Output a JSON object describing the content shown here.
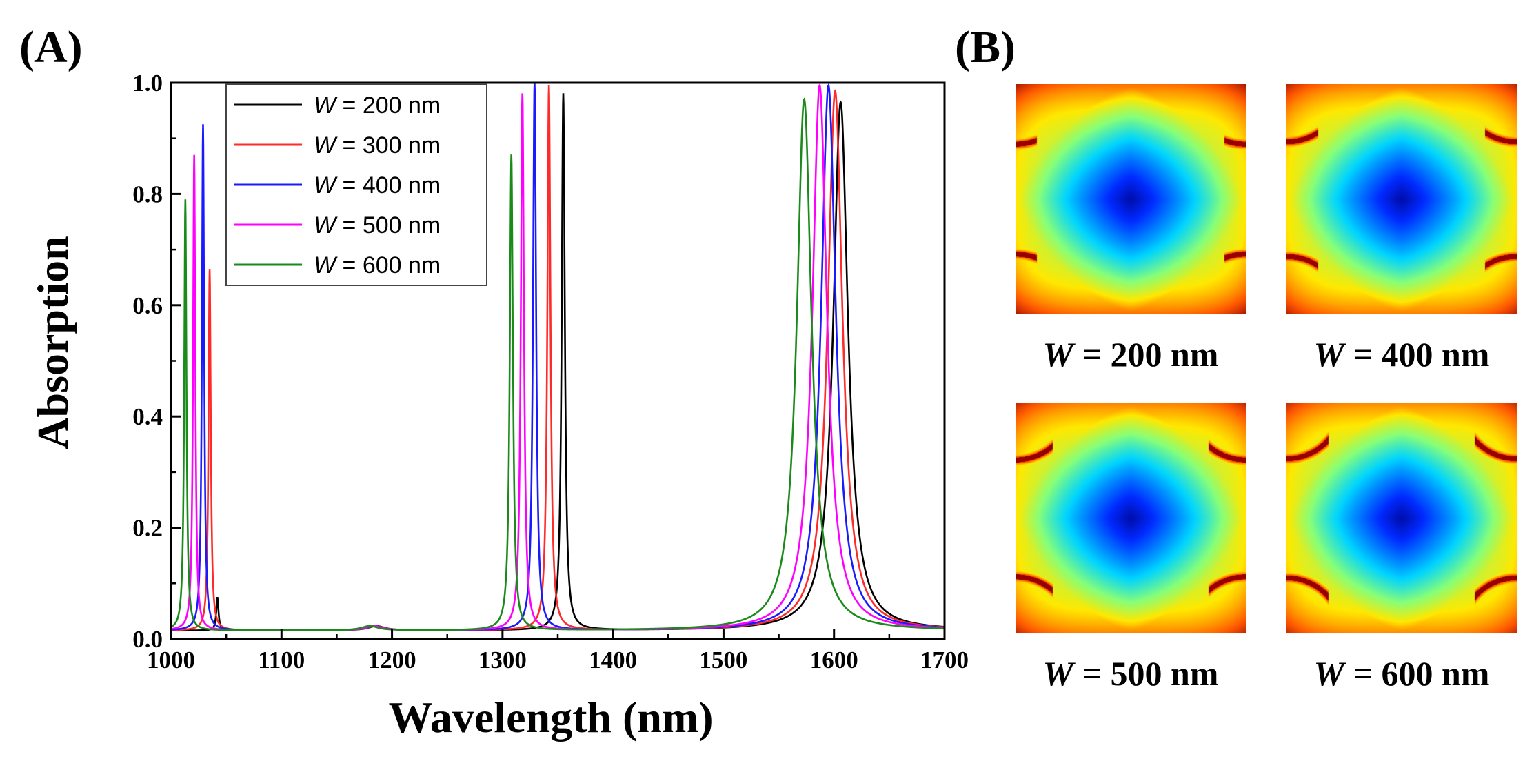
{
  "panel_a": {
    "label": "(A)"
  },
  "panel_b": {
    "label": "(B)",
    "maps": [
      {
        "var": "W",
        "rest": " = 200 nm",
        "gap_fraction": 0.33
      },
      {
        "var": "W",
        "rest": " = 400 nm",
        "gap_fraction": 0.5
      },
      {
        "var": "W",
        "rest": " = 500 nm",
        "gap_fraction": 0.58
      },
      {
        "var": "W",
        "rest": " = 600 nm",
        "gap_fraction": 0.66
      }
    ]
  },
  "chart_data": {
    "type": "line",
    "xlabel": "Wavelength (nm)",
    "ylabel": "Absorption",
    "xlim": [
      1000,
      1700
    ],
    "ylim": [
      0,
      1.0
    ],
    "xticks": [
      "1000",
      "1100",
      "1200",
      "1300",
      "1400",
      "1500",
      "1600",
      "1700"
    ],
    "yticks": [
      "0.0",
      "0.2",
      "0.4",
      "0.6",
      "0.8",
      "1.0"
    ],
    "baseline": 0.015,
    "legend_position": "top-left",
    "series": [
      {
        "name": "W = 200 nm",
        "var": "W",
        "rest": " = 200 nm",
        "color": "#000000",
        "peaks": [
          [
            1042,
            0.06,
            1.2
          ],
          [
            1186,
            0.008,
            9
          ],
          [
            1355,
            0.965,
            1.7
          ],
          [
            1606,
            0.95,
            8
          ]
        ]
      },
      {
        "name": "W = 300 nm",
        "var": "W",
        "rest": " = 300 nm",
        "color": "#ff2a2a",
        "peaks": [
          [
            1035,
            0.65,
            1.2
          ],
          [
            1185,
            0.008,
            9
          ],
          [
            1342,
            0.98,
            1.7
          ],
          [
            1601,
            0.97,
            8
          ]
        ]
      },
      {
        "name": "W = 400 nm",
        "var": "W",
        "rest": " = 400 nm",
        "color": "#1a1aff",
        "peaks": [
          [
            1029,
            0.91,
            1.2
          ],
          [
            1184,
            0.008,
            9
          ],
          [
            1329,
            0.99,
            1.7
          ],
          [
            1595,
            0.98,
            8
          ]
        ]
      },
      {
        "name": "W = 500 nm",
        "var": "W",
        "rest": " = 500 nm",
        "color": "#ff00ff",
        "peaks": [
          [
            1021,
            0.855,
            1.2
          ],
          [
            1183,
            0.008,
            9
          ],
          [
            1318,
            0.965,
            1.7
          ],
          [
            1587,
            0.98,
            8
          ]
        ]
      },
      {
        "name": "W = 600 nm",
        "var": "W",
        "rest": " = 600 nm",
        "color": "#1a8a1a",
        "peaks": [
          [
            1013,
            0.775,
            1.2
          ],
          [
            1180,
            0.008,
            9
          ],
          [
            1308,
            0.855,
            1.7
          ],
          [
            1573,
            0.955,
            8
          ]
        ]
      }
    ]
  }
}
